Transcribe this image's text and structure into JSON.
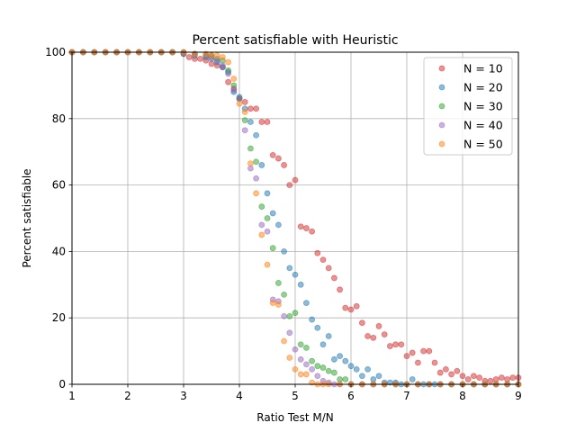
{
  "chart_data": {
    "type": "scatter",
    "title": "Percent satisfiable with Heuristic",
    "xlabel": "Ratio Test M/N",
    "ylabel": "Percent satisfiable",
    "xlim": [
      1,
      9
    ],
    "ylim": [
      0,
      100
    ],
    "xticks": [
      1,
      2,
      3,
      4,
      5,
      6,
      7,
      8,
      9
    ],
    "yticks": [
      0,
      20,
      40,
      60,
      80,
      100
    ],
    "grid": true,
    "legend_position": "top-right",
    "series": [
      {
        "name": "N = 10",
        "color": "#d62728",
        "points": [
          [
            1.0,
            100
          ],
          [
            1.2,
            100
          ],
          [
            1.4,
            100
          ],
          [
            1.6,
            100
          ],
          [
            1.8,
            100
          ],
          [
            2.0,
            100
          ],
          [
            2.2,
            100
          ],
          [
            2.4,
            100
          ],
          [
            2.6,
            100
          ],
          [
            2.8,
            100
          ],
          [
            3.0,
            99.5
          ],
          [
            3.1,
            98.5
          ],
          [
            3.2,
            98
          ],
          [
            3.3,
            98
          ],
          [
            3.4,
            97.5
          ],
          [
            3.5,
            96.5
          ],
          [
            3.6,
            96
          ],
          [
            3.7,
            95.5
          ],
          [
            3.8,
            91
          ],
          [
            3.9,
            89
          ],
          [
            4.0,
            86
          ],
          [
            4.1,
            85
          ],
          [
            4.2,
            83
          ],
          [
            4.3,
            83
          ],
          [
            4.4,
            79
          ],
          [
            4.5,
            79
          ],
          [
            4.6,
            69
          ],
          [
            4.7,
            68
          ],
          [
            4.8,
            66
          ],
          [
            4.9,
            60
          ],
          [
            5.0,
            61.5
          ],
          [
            5.1,
            47.5
          ],
          [
            5.2,
            47
          ],
          [
            5.3,
            46
          ],
          [
            5.4,
            39.5
          ],
          [
            5.5,
            37.5
          ],
          [
            5.6,
            35
          ],
          [
            5.7,
            32
          ],
          [
            5.8,
            28.5
          ],
          [
            5.9,
            23
          ],
          [
            6.0,
            22.5
          ],
          [
            6.1,
            23.5
          ],
          [
            6.2,
            18.5
          ],
          [
            6.3,
            14.5
          ],
          [
            6.4,
            14
          ],
          [
            6.5,
            17.5
          ],
          [
            6.6,
            15
          ],
          [
            6.7,
            11.5
          ],
          [
            6.8,
            12
          ],
          [
            6.9,
            12
          ],
          [
            7.0,
            8.5
          ],
          [
            7.1,
            9.5
          ],
          [
            7.2,
            6.5
          ],
          [
            7.3,
            10
          ],
          [
            7.4,
            10
          ],
          [
            7.5,
            6.5
          ],
          [
            7.6,
            3.5
          ],
          [
            7.7,
            4.5
          ],
          [
            7.8,
            3
          ],
          [
            7.9,
            4
          ],
          [
            8.0,
            2.5
          ],
          [
            8.1,
            1.5
          ],
          [
            8.2,
            2.5
          ],
          [
            8.3,
            2
          ],
          [
            8.4,
            1
          ],
          [
            8.5,
            1
          ],
          [
            8.6,
            1.5
          ],
          [
            8.7,
            2
          ],
          [
            8.8,
            1.5
          ],
          [
            8.9,
            2
          ],
          [
            9.0,
            2
          ]
        ]
      },
      {
        "name": "N = 20",
        "color": "#1f77b4",
        "points": [
          [
            1.0,
            100
          ],
          [
            1.2,
            100
          ],
          [
            1.4,
            100
          ],
          [
            1.6,
            100
          ],
          [
            1.8,
            100
          ],
          [
            2.0,
            100
          ],
          [
            2.2,
            100
          ],
          [
            2.4,
            100
          ],
          [
            2.6,
            100
          ],
          [
            2.8,
            100
          ],
          [
            3.0,
            99.5
          ],
          [
            3.2,
            99
          ],
          [
            3.4,
            98.5
          ],
          [
            3.5,
            98
          ],
          [
            3.6,
            97
          ],
          [
            3.7,
            95.5
          ],
          [
            3.8,
            94
          ],
          [
            3.9,
            88
          ],
          [
            4.0,
            86.5
          ],
          [
            4.1,
            83
          ],
          [
            4.2,
            79
          ],
          [
            4.3,
            75
          ],
          [
            4.4,
            66
          ],
          [
            4.5,
            57.5
          ],
          [
            4.6,
            51.5
          ],
          [
            4.7,
            48
          ],
          [
            4.8,
            40
          ],
          [
            4.9,
            35
          ],
          [
            5.0,
            33
          ],
          [
            5.1,
            30
          ],
          [
            5.2,
            24.5
          ],
          [
            5.3,
            19.5
          ],
          [
            5.4,
            17
          ],
          [
            5.5,
            12
          ],
          [
            5.6,
            14.5
          ],
          [
            5.7,
            7.5
          ],
          [
            5.8,
            8.5
          ],
          [
            5.9,
            7
          ],
          [
            6.0,
            5.5
          ],
          [
            6.1,
            4.5
          ],
          [
            6.2,
            2.5
          ],
          [
            6.3,
            4.5
          ],
          [
            6.4,
            1.5
          ],
          [
            6.5,
            2.5
          ],
          [
            6.6,
            0.5
          ],
          [
            6.7,
            0.5
          ],
          [
            6.8,
            0.5
          ],
          [
            6.9,
            0
          ],
          [
            7.0,
            0
          ],
          [
            7.1,
            1.5
          ],
          [
            7.2,
            0
          ],
          [
            7.3,
            0
          ],
          [
            7.4,
            0
          ],
          [
            7.5,
            0
          ],
          [
            7.6,
            0
          ],
          [
            7.8,
            0
          ],
          [
            8.0,
            0
          ],
          [
            8.2,
            0
          ],
          [
            8.4,
            0
          ],
          [
            8.6,
            0
          ],
          [
            8.8,
            0
          ],
          [
            9.0,
            0
          ]
        ]
      },
      {
        "name": "N = 30",
        "color": "#2ca02c",
        "points": [
          [
            1.0,
            100
          ],
          [
            1.2,
            100
          ],
          [
            1.4,
            100
          ],
          [
            1.6,
            100
          ],
          [
            1.8,
            100
          ],
          [
            2.0,
            100
          ],
          [
            2.2,
            100
          ],
          [
            2.4,
            100
          ],
          [
            2.6,
            100
          ],
          [
            2.8,
            100
          ],
          [
            3.0,
            100
          ],
          [
            3.2,
            99.5
          ],
          [
            3.4,
            99
          ],
          [
            3.5,
            99
          ],
          [
            3.6,
            98
          ],
          [
            3.7,
            97.5
          ],
          [
            3.8,
            94.5
          ],
          [
            3.9,
            90
          ],
          [
            4.0,
            86
          ],
          [
            4.1,
            79.5
          ],
          [
            4.2,
            71
          ],
          [
            4.3,
            67
          ],
          [
            4.4,
            53.5
          ],
          [
            4.5,
            50
          ],
          [
            4.6,
            41
          ],
          [
            4.7,
            30.5
          ],
          [
            4.8,
            27
          ],
          [
            4.9,
            20.5
          ],
          [
            5.0,
            21.5
          ],
          [
            5.1,
            12
          ],
          [
            5.2,
            11
          ],
          [
            5.3,
            7
          ],
          [
            5.4,
            5.5
          ],
          [
            5.5,
            5
          ],
          [
            5.6,
            4
          ],
          [
            5.7,
            3.5
          ],
          [
            5.8,
            1.5
          ],
          [
            5.9,
            1.5
          ],
          [
            6.0,
            0
          ],
          [
            6.2,
            0
          ],
          [
            6.4,
            0
          ],
          [
            6.6,
            0
          ],
          [
            6.8,
            0
          ],
          [
            7.0,
            0
          ],
          [
            7.2,
            0
          ],
          [
            7.4,
            0
          ],
          [
            7.6,
            0
          ],
          [
            7.8,
            0
          ],
          [
            8.0,
            0
          ],
          [
            8.2,
            0
          ],
          [
            8.4,
            0
          ],
          [
            8.6,
            0
          ],
          [
            8.8,
            0
          ],
          [
            9.0,
            0
          ]
        ]
      },
      {
        "name": "N = 40",
        "color": "#9467bd",
        "points": [
          [
            1.0,
            100
          ],
          [
            1.2,
            100
          ],
          [
            1.4,
            100
          ],
          [
            1.6,
            100
          ],
          [
            1.8,
            100
          ],
          [
            2.0,
            100
          ],
          [
            2.2,
            100
          ],
          [
            2.4,
            100
          ],
          [
            2.6,
            100
          ],
          [
            2.8,
            100
          ],
          [
            3.0,
            100
          ],
          [
            3.2,
            99.5
          ],
          [
            3.4,
            99
          ],
          [
            3.5,
            98.5
          ],
          [
            3.6,
            97.5
          ],
          [
            3.7,
            96
          ],
          [
            3.8,
            93.5
          ],
          [
            3.9,
            88.5
          ],
          [
            4.0,
            86
          ],
          [
            4.1,
            76.5
          ],
          [
            4.2,
            65
          ],
          [
            4.3,
            62
          ],
          [
            4.4,
            48
          ],
          [
            4.5,
            46
          ],
          [
            4.6,
            25.5
          ],
          [
            4.7,
            25
          ],
          [
            4.8,
            20.5
          ],
          [
            4.9,
            15.5
          ],
          [
            5.0,
            10.5
          ],
          [
            5.1,
            7.5
          ],
          [
            5.2,
            6
          ],
          [
            5.3,
            4.5
          ],
          [
            5.4,
            2.5
          ],
          [
            5.5,
            1
          ],
          [
            5.6,
            0.5
          ],
          [
            5.7,
            0
          ],
          [
            5.8,
            0
          ],
          [
            6.0,
            0
          ],
          [
            6.2,
            0
          ],
          [
            6.4,
            0
          ],
          [
            6.6,
            0
          ],
          [
            6.8,
            0
          ],
          [
            7.0,
            0
          ],
          [
            7.2,
            0
          ],
          [
            7.4,
            0
          ],
          [
            7.6,
            0
          ],
          [
            7.8,
            0
          ],
          [
            8.0,
            0
          ],
          [
            8.2,
            0
          ],
          [
            8.4,
            0
          ],
          [
            8.6,
            0
          ],
          [
            8.8,
            0
          ],
          [
            9.0,
            0
          ]
        ]
      },
      {
        "name": "N = 50",
        "color": "#ff7f0e",
        "points": [
          [
            1.0,
            100
          ],
          [
            1.2,
            100
          ],
          [
            1.4,
            100
          ],
          [
            1.6,
            100
          ],
          [
            1.8,
            100
          ],
          [
            2.0,
            100
          ],
          [
            2.2,
            100
          ],
          [
            2.4,
            100
          ],
          [
            2.6,
            100
          ],
          [
            2.8,
            100
          ],
          [
            3.0,
            100
          ],
          [
            3.2,
            99.5
          ],
          [
            3.4,
            99.5
          ],
          [
            3.5,
            99
          ],
          [
            3.6,
            99
          ],
          [
            3.7,
            98.5
          ],
          [
            3.8,
            97
          ],
          [
            3.9,
            92
          ],
          [
            4.0,
            84.5
          ],
          [
            4.1,
            82
          ],
          [
            4.2,
            66.5
          ],
          [
            4.3,
            57.5
          ],
          [
            4.4,
            45
          ],
          [
            4.5,
            36
          ],
          [
            4.6,
            24.5
          ],
          [
            4.7,
            24
          ],
          [
            4.8,
            13
          ],
          [
            4.9,
            8
          ],
          [
            5.0,
            4.5
          ],
          [
            5.1,
            3
          ],
          [
            5.2,
            3
          ],
          [
            5.3,
            0.5
          ],
          [
            5.4,
            0
          ],
          [
            5.5,
            0
          ],
          [
            5.6,
            0
          ],
          [
            5.8,
            0
          ],
          [
            6.0,
            0
          ],
          [
            6.2,
            0
          ],
          [
            6.4,
            0
          ],
          [
            6.6,
            0
          ],
          [
            6.8,
            0
          ],
          [
            7.0,
            0
          ],
          [
            7.2,
            0
          ],
          [
            7.4,
            0
          ],
          [
            7.6,
            0
          ],
          [
            7.8,
            0
          ],
          [
            8.0,
            0
          ],
          [
            8.2,
            0
          ],
          [
            8.4,
            0
          ],
          [
            8.6,
            0
          ],
          [
            8.8,
            0
          ],
          [
            9.0,
            0
          ]
        ]
      }
    ]
  }
}
